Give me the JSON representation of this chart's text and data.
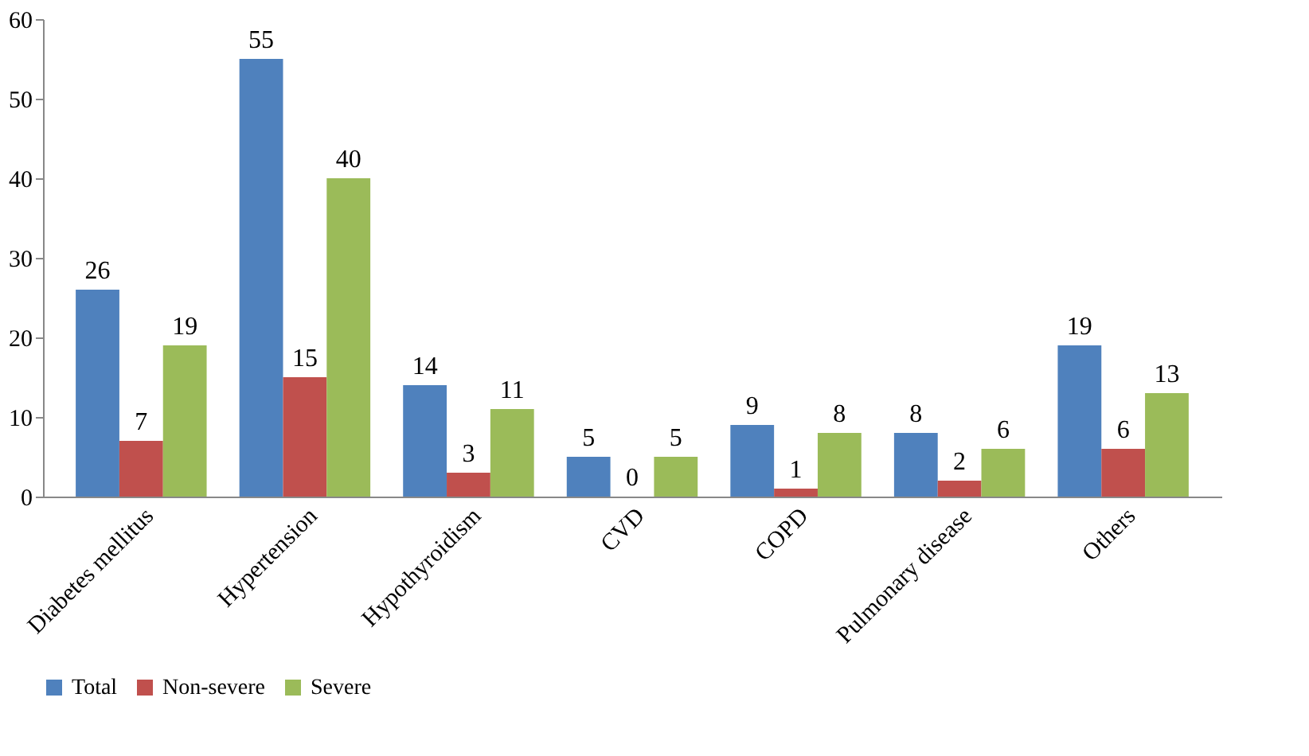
{
  "chart_data": {
    "type": "bar",
    "categories": [
      "Diabetes mellitus",
      "Hypertension",
      "Hypothyroidism",
      "CVD",
      "COPD",
      "Pulmonary disease",
      "Others"
    ],
    "series": [
      {
        "name": "Total",
        "color": "#4f81bd",
        "values": [
          26,
          55,
          14,
          5,
          9,
          8,
          19
        ]
      },
      {
        "name": "Non-severe",
        "color": "#c0504d",
        "values": [
          7,
          15,
          3,
          0,
          1,
          2,
          6
        ]
      },
      {
        "name": "Severe",
        "color": "#9bbb59",
        "values": [
          19,
          40,
          11,
          5,
          8,
          6,
          13
        ]
      }
    ],
    "ylim": [
      0,
      60
    ],
    "yticks": [
      0,
      10,
      20,
      30,
      40,
      50,
      60
    ],
    "grid": false,
    "legend": "bottom",
    "data_labels": true
  }
}
